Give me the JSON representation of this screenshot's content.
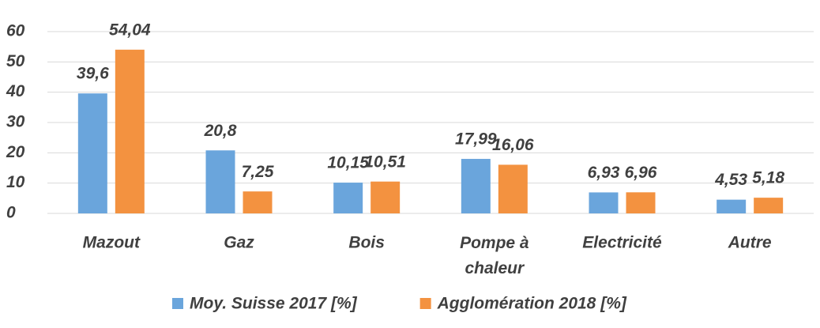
{
  "chart_data": {
    "type": "bar",
    "categories": [
      "Mazout",
      "Gaz",
      "Bois",
      "Pompe à chaleur",
      "Electricité",
      "Autre"
    ],
    "series": [
      {
        "name": "Moy. Suisse 2017 [%]",
        "color": "#6aa5dc",
        "values": [
          39.6,
          20.8,
          10.15,
          17.99,
          6.93,
          4.53
        ],
        "value_labels": [
          "39,6",
          "20,8",
          "10,15",
          "17,99",
          "6,93",
          "4,53"
        ]
      },
      {
        "name": "Agglomération 2018 [%]",
        "color": "#f39240",
        "values": [
          54.04,
          7.25,
          10.51,
          16.06,
          6.96,
          5.18
        ],
        "value_labels": [
          "54,04",
          "7,25",
          "10,51",
          "16,06",
          "6,96",
          "5,18"
        ]
      }
    ],
    "ylim": [
      0,
      60
    ],
    "yticks": [
      0,
      10,
      20,
      30,
      40,
      50,
      60
    ],
    "grid": true,
    "legend": "bottom"
  }
}
